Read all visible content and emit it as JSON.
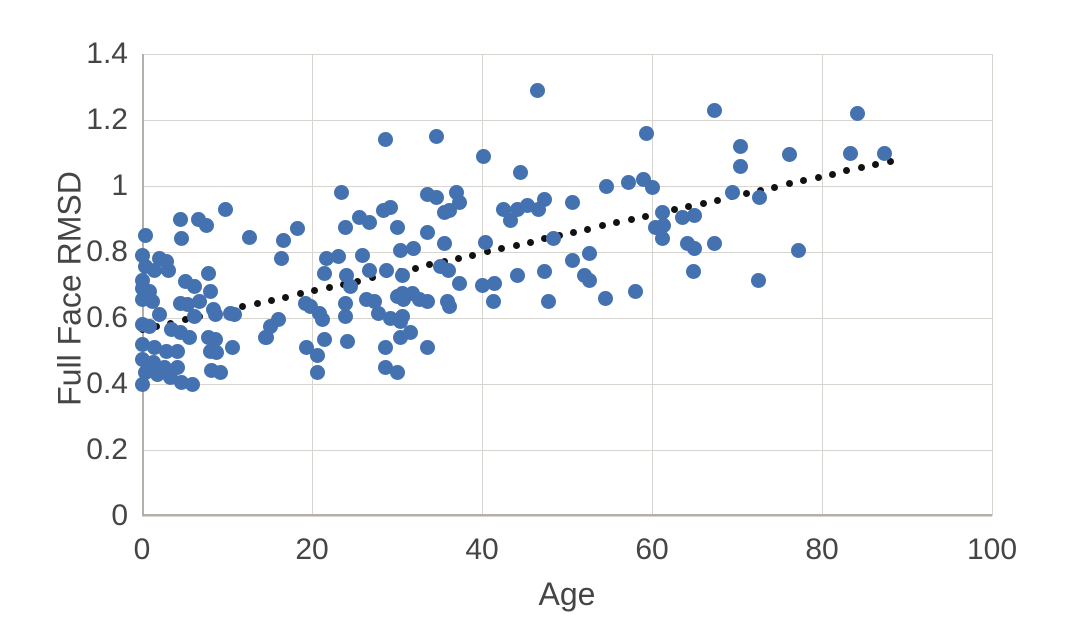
{
  "chart_data": {
    "type": "scatter",
    "title": "",
    "xlabel": "Age",
    "ylabel": "Full Face RMSD",
    "xlim": [
      0,
      100
    ],
    "ylim": [
      0,
      1.4
    ],
    "x_ticks": [
      0,
      20,
      40,
      60,
      80,
      100
    ],
    "x_tick_labels": [
      "0",
      "20",
      "40",
      "60",
      "80",
      "100"
    ],
    "y_ticks": [
      0,
      0.2,
      0.4,
      0.6,
      0.8,
      1,
      1.2,
      1.4
    ],
    "y_tick_labels": [
      "0",
      "0.2",
      "0.4",
      "0.6",
      "0.8",
      "1",
      "1.2",
      "1.4"
    ],
    "grid": true,
    "legend_position": "none",
    "colors": {
      "background": "#ffffff",
      "point": "#4471b0",
      "trendline": "#121212",
      "gridline": "#d8d5d0",
      "axis_line": "#b3b0ab",
      "label": "#464544"
    },
    "series": [
      {
        "name": "rmsd-by-age",
        "type": "scatter",
        "points": [
          [
            0,
            0.79
          ],
          [
            0,
            0.69
          ],
          [
            0,
            0.655
          ],
          [
            0,
            0.58
          ],
          [
            0,
            0.475
          ],
          [
            0,
            0.4
          ],
          [
            0.1,
            0.715
          ],
          [
            0.1,
            0.52
          ],
          [
            0.4,
            0.85
          ],
          [
            0.4,
            0.755
          ],
          [
            0.4,
            0.435
          ],
          [
            0.9,
            0.68
          ],
          [
            0.9,
            0.575
          ],
          [
            1.2,
            0.65
          ],
          [
            1.3,
            0.465
          ],
          [
            1.5,
            0.745
          ],
          [
            1.5,
            0.51
          ],
          [
            1.8,
            0.43
          ],
          [
            2.1,
            0.78
          ],
          [
            2.1,
            0.61
          ],
          [
            2.7,
            0.45
          ],
          [
            2.9,
            0.77
          ],
          [
            2.9,
            0.5
          ],
          [
            3.1,
            0.745
          ],
          [
            3.3,
            0.42
          ],
          [
            3.5,
            0.565
          ],
          [
            4.2,
            0.5
          ],
          [
            4.2,
            0.45
          ],
          [
            4.5,
            0.9
          ],
          [
            4.5,
            0.645
          ],
          [
            4.5,
            0.555
          ],
          [
            4.6,
            0.84
          ],
          [
            4.7,
            0.405
          ],
          [
            5.1,
            0.71
          ],
          [
            5.4,
            0.64
          ],
          [
            5.6,
            0.54
          ],
          [
            5.9,
            0.4
          ],
          [
            6.2,
            0.695
          ],
          [
            6.2,
            0.605
          ],
          [
            6.6,
            0.9
          ],
          [
            6.8,
            0.65
          ],
          [
            7.6,
            0.88
          ],
          [
            7.8,
            0.735
          ],
          [
            7.8,
            0.54
          ],
          [
            8,
            0.68
          ],
          [
            8,
            0.5
          ],
          [
            8.2,
            0.44
          ],
          [
            8.4,
            0.625
          ],
          [
            8.6,
            0.535
          ],
          [
            8.7,
            0.61
          ],
          [
            8.8,
            0.495
          ],
          [
            9.2,
            0.435
          ],
          [
            9.8,
            0.93
          ],
          [
            10.4,
            0.615
          ],
          [
            10.6,
            0.51
          ],
          [
            10.9,
            0.61
          ],
          [
            12.6,
            0.845
          ],
          [
            14.5,
            0.54
          ],
          [
            14.7,
            0.54
          ],
          [
            15.1,
            0.575
          ],
          [
            16,
            0.595
          ],
          [
            16.4,
            0.78
          ],
          [
            16.7,
            0.835
          ],
          [
            18.3,
            0.87
          ],
          [
            19.2,
            0.645
          ],
          [
            19.4,
            0.51
          ],
          [
            19.8,
            0.635
          ],
          [
            20.6,
            0.485
          ],
          [
            20.6,
            0.435
          ],
          [
            20.9,
            0.615
          ],
          [
            21.2,
            0.595
          ],
          [
            21.5,
            0.535
          ],
          [
            21.5,
            0.735
          ],
          [
            21.7,
            0.78
          ],
          [
            23.1,
            0.785
          ],
          [
            23.5,
            0.98
          ],
          [
            23.9,
            0.875
          ],
          [
            23.9,
            0.645
          ],
          [
            23.9,
            0.605
          ],
          [
            24.1,
            0.73
          ],
          [
            24.2,
            0.53
          ],
          [
            24.5,
            0.695
          ],
          [
            25.6,
            0.905
          ],
          [
            25.9,
            0.79
          ],
          [
            26.4,
            0.655
          ],
          [
            26.8,
            0.89
          ],
          [
            26.8,
            0.745
          ],
          [
            27.4,
            0.65
          ],
          [
            27.8,
            0.615
          ],
          [
            28.4,
            0.925
          ],
          [
            28.6,
            1.14
          ],
          [
            28.6,
            0.51
          ],
          [
            28.6,
            0.45
          ],
          [
            28.8,
            0.745
          ],
          [
            29.2,
            0.935
          ],
          [
            29.2,
            0.6
          ],
          [
            30.1,
            0.875
          ],
          [
            30.1,
            0.665
          ],
          [
            30.1,
            0.435
          ],
          [
            30.4,
            0.805
          ],
          [
            30.4,
            0.59
          ],
          [
            30.4,
            0.54
          ],
          [
            30.6,
            0.73
          ],
          [
            30.8,
            0.655
          ],
          [
            30.7,
            0.605
          ],
          [
            30.7,
            0.675
          ],
          [
            31.8,
            0.675
          ],
          [
            31.6,
            0.555
          ],
          [
            31.9,
            0.81
          ],
          [
            32.7,
            0.655
          ],
          [
            33.6,
            0.975
          ],
          [
            33.6,
            0.86
          ],
          [
            33.6,
            0.65
          ],
          [
            33.6,
            0.51
          ],
          [
            34.6,
            1.15
          ],
          [
            34.7,
            0.965
          ],
          [
            35.1,
            0.755
          ],
          [
            35.6,
            0.92
          ],
          [
            35.6,
            0.825
          ],
          [
            35.9,
            0.65
          ],
          [
            36,
            0.745
          ],
          [
            36.2,
            0.925
          ],
          [
            36.2,
            0.635
          ],
          [
            37,
            0.98
          ],
          [
            37.3,
            0.95
          ],
          [
            37.4,
            0.705
          ],
          [
            40.1,
            0.7
          ],
          [
            40.2,
            1.09
          ],
          [
            40.4,
            0.83
          ],
          [
            41.3,
            0.65
          ],
          [
            41.5,
            0.705
          ],
          [
            42.5,
            0.93
          ],
          [
            43.3,
            0.895
          ],
          [
            44.2,
            0.93
          ],
          [
            44.2,
            0.73
          ],
          [
            44.5,
            1.04
          ],
          [
            45.4,
            0.94
          ],
          [
            46.5,
            1.29
          ],
          [
            46.6,
            0.93
          ],
          [
            47.3,
            0.74
          ],
          [
            47.4,
            0.96
          ],
          [
            47.8,
            0.65
          ],
          [
            48.4,
            0.84
          ],
          [
            50.6,
            0.95
          ],
          [
            50.7,
            0.775
          ],
          [
            52.1,
            0.73
          ],
          [
            52.7,
            0.795
          ],
          [
            52.7,
            0.715
          ],
          [
            54.5,
            0.66
          ],
          [
            54.6,
            1.0
          ],
          [
            57.2,
            1.01
          ],
          [
            58,
            0.68
          ],
          [
            59,
            1.02
          ],
          [
            59.3,
            1.16
          ],
          [
            60.1,
            0.995
          ],
          [
            60.4,
            0.875
          ],
          [
            61.2,
            0.92
          ],
          [
            61.2,
            0.84
          ],
          [
            61.3,
            0.88
          ],
          [
            63.6,
            0.905
          ],
          [
            64.2,
            0.825
          ],
          [
            64.9,
            0.74
          ],
          [
            65,
            0.91
          ],
          [
            65,
            0.81
          ],
          [
            67.4,
            1.23
          ],
          [
            67.4,
            0.825
          ],
          [
            69.5,
            0.98
          ],
          [
            70.4,
            1.12
          ],
          [
            70.4,
            1.06
          ],
          [
            72.5,
            0.715
          ],
          [
            72.7,
            0.965
          ],
          [
            76.2,
            1.095
          ],
          [
            77.2,
            0.805
          ],
          [
            83.4,
            1.1
          ],
          [
            84.2,
            1.22
          ],
          [
            87.3,
            1.1
          ]
        ]
      },
      {
        "name": "linear-trend",
        "type": "dotted-line",
        "x1": 0,
        "y1": 0.565,
        "x2": 88,
        "y2": 1.075,
        "dot_count": 53
      }
    ]
  }
}
